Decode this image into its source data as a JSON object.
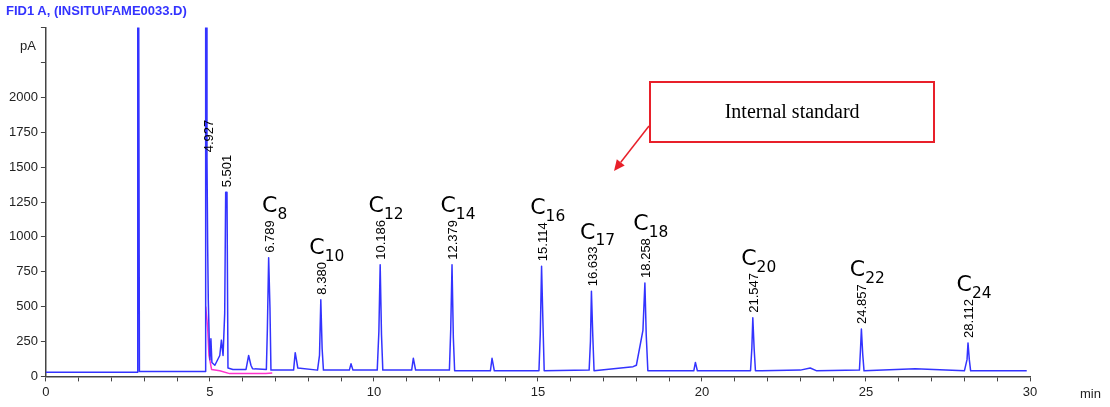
{
  "chart_data": {
    "type": "line",
    "title": "FID1 A, (INSITU\\FAME0033.D)",
    "xlabel": "min",
    "ylabel": "pA",
    "xlim": [
      0,
      30
    ],
    "xticks": [
      0,
      {
        "value": 1,
        "label": null
      },
      {
        "value": 2,
        "label": null
      },
      {
        "value": 3,
        "label": null
      },
      {
        "value": 4,
        "label": null
      },
      5,
      {
        "value": 6,
        "label": null
      },
      {
        "value": 7,
        "label": null
      },
      {
        "value": 8,
        "label": null
      },
      {
        "value": 9,
        "label": null
      },
      10,
      {
        "value": 11,
        "label": null
      },
      {
        "value": 12,
        "label": null
      },
      {
        "value": 13,
        "label": null
      },
      {
        "value": 14,
        "label": null
      },
      15,
      {
        "value": 16,
        "label": null
      },
      {
        "value": 17,
        "label": null
      },
      {
        "value": 18,
        "label": null
      },
      {
        "value": 19,
        "label": null
      },
      20,
      {
        "value": 21,
        "label": null
      },
      {
        "value": 22,
        "label": null
      },
      {
        "value": 23,
        "label": null
      },
      {
        "value": 24,
        "label": null
      },
      25,
      {
        "value": 26,
        "label": null
      },
      {
        "value": 27,
        "label": null
      },
      {
        "value": 28,
        "label": null
      },
      {
        "value": 29,
        "label": null
      },
      30
    ],
    "ylim": [
      0,
      2500
    ],
    "yticks": [
      0,
      250,
      500,
      750,
      1000,
      1250,
      1500,
      1750,
      2000,
      {
        "value": 2250,
        "label": null
      },
      {
        "value": 2500,
        "label": null
      }
    ],
    "series": [
      {
        "color": "#3333ff",
        "x": [
          0,
          2.78,
          2.8,
          2.83,
          2.85,
          4.85,
          4.87,
          4.9,
          4.91,
          4.93,
          4.95,
          4.98,
          5.0,
          5.03,
          5.06,
          5.15,
          5.3,
          5.35,
          5.4,
          5.45,
          5.48,
          5.52,
          5.55,
          5.7,
          6.1,
          6.18,
          6.25,
          6.3,
          6.72,
          6.75,
          6.79,
          6.83,
          6.86,
          7.55,
          7.6,
          7.68,
          8.28,
          8.34,
          8.38,
          8.42,
          8.46,
          9.25,
          9.3,
          9.36,
          10.1,
          10.15,
          10.19,
          10.23,
          10.27,
          11.15,
          11.2,
          11.27,
          12.3,
          12.34,
          12.38,
          12.42,
          12.46,
          13.55,
          13.6,
          13.67,
          15.03,
          15.07,
          15.11,
          15.15,
          15.19,
          16.56,
          16.6,
          16.63,
          16.67,
          16.71,
          17.9,
          18.0,
          18.2,
          18.26,
          18.3,
          18.35,
          19.75,
          19.8,
          19.86,
          21.48,
          21.52,
          21.55,
          21.59,
          21.63,
          23.0,
          23.3,
          23.5,
          24.8,
          24.83,
          24.86,
          24.9,
          24.94,
          26.5,
          28.0,
          28.08,
          28.11,
          28.15,
          28.19,
          29.9
        ],
        "values": [
          30,
          30,
          2500,
          2500,
          35,
          35,
          2500,
          2500,
          1570,
          950,
          550,
          250,
          120,
          270,
          100,
          80,
          150,
          260,
          150,
          450,
          1320,
          1320,
          60,
          50,
          50,
          150,
          80,
          55,
          50,
          330,
          850,
          490,
          45,
          45,
          170,
          60,
          45,
          150,
          550,
          200,
          45,
          45,
          90,
          45,
          45,
          320,
          800,
          300,
          45,
          45,
          130,
          45,
          45,
          330,
          800,
          280,
          40,
          40,
          130,
          40,
          40,
          300,
          790,
          400,
          40,
          45,
          250,
          610,
          300,
          40,
          70,
          80,
          330,
          670,
          300,
          40,
          40,
          100,
          40,
          40,
          200,
          420,
          200,
          40,
          45,
          60,
          40,
          45,
          180,
          340,
          160,
          40,
          55,
          40,
          120,
          240,
          120,
          40,
          40
        ]
      },
      {
        "color": "#ff33cc",
        "x": [
          4.87,
          4.93,
          4.97,
          5.05,
          5.3,
          5.6,
          6.7,
          6.9
        ],
        "values": [
          500,
          350,
          150,
          50,
          40,
          20,
          20,
          25
        ]
      }
    ],
    "annotations": [
      {
        "text": "4.927",
        "x": 4.927,
        "y": 1570
      },
      {
        "text": "5.501",
        "x": 5.501,
        "y": 1320
      },
      {
        "text": "6.789",
        "x": 6.789,
        "y": 850
      },
      {
        "text": "C$_{8}$",
        "x": 6.789,
        "y": 850
      },
      {
        "text": "8.380",
        "x": 8.38,
        "y": 550
      },
      {
        "text": "C$_{10}$",
        "x": 8.38,
        "y": 550
      },
      {
        "text": "10.186",
        "x": 10.186,
        "y": 800
      },
      {
        "text": "C$_{12}$",
        "x": 10.186,
        "y": 800
      },
      {
        "text": "12.379",
        "x": 12.379,
        "y": 800
      },
      {
        "text": "C$_{14}$",
        "x": 12.379,
        "y": 800
      },
      {
        "text": "15.114",
        "x": 15.114,
        "y": 790
      },
      {
        "text": "C$_{16}$",
        "x": 15.114,
        "y": 790
      },
      {
        "text": "16.633",
        "x": 16.633,
        "y": 610
      },
      {
        "text": "C$_{17}$",
        "x": 16.633,
        "y": 610
      },
      "Internal standard",
      {
        "text": "18.258",
        "x": 18.258,
        "y": 670
      },
      {
        "text": "C$_{18}$",
        "x": 18.258,
        "y": 670
      },
      {
        "text": "21.547",
        "x": 21.547,
        "y": 420
      },
      {
        "text": "C$_{20}$",
        "x": 21.547,
        "y": 420
      },
      {
        "text": "24.857",
        "x": 24.857,
        "y": 340
      },
      {
        "text": "C$_{22}$",
        "x": 24.857,
        "y": 340
      },
      {
        "text": "28.112",
        "x": 28.112,
        "y": 240
      },
      {
        "text": "C$_{24}$",
        "x": 28.112,
        "y": 240
      }
    ]
  }
}
